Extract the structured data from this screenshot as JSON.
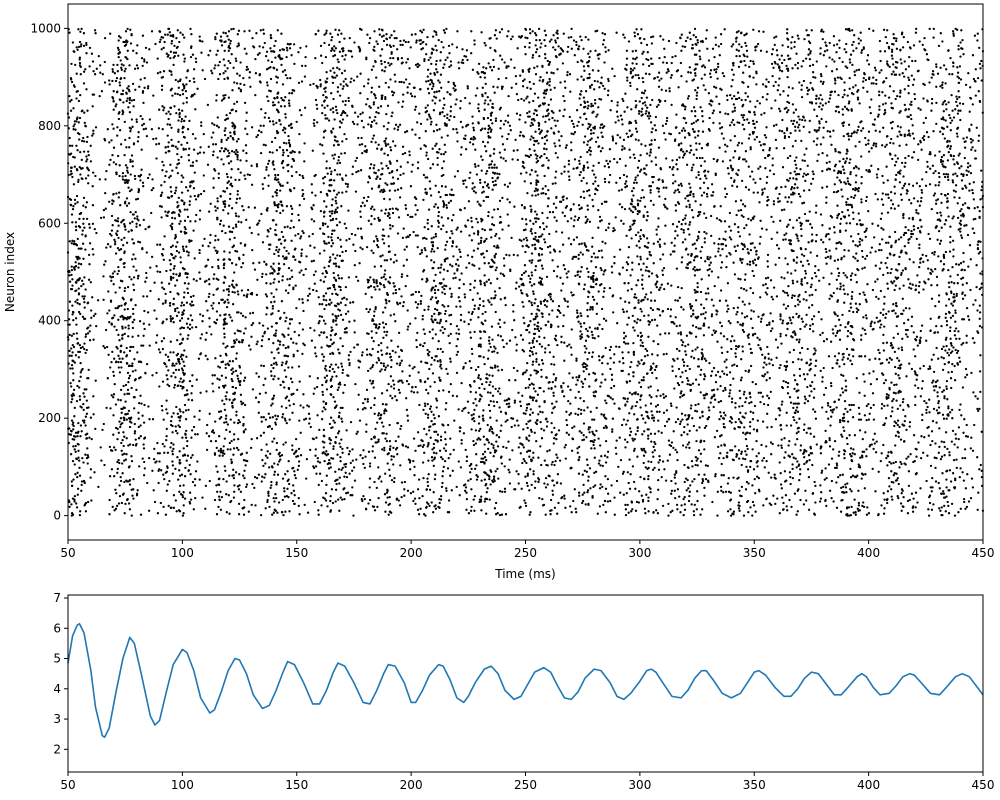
{
  "chart_data": [
    {
      "type": "scatter",
      "description_kind": "spike raster",
      "xlabel": "Time (ms)",
      "ylabel": "Neuron index",
      "xlim": [
        50,
        450
      ],
      "ylim": [
        -50,
        1050
      ],
      "xticks": [
        50,
        100,
        150,
        200,
        250,
        300,
        350,
        400,
        450
      ],
      "yticks": [
        0,
        200,
        400,
        600,
        800,
        1000
      ],
      "neuron_count": 1000,
      "marker_color": "#000000",
      "oscillation_period_ms": 22.5,
      "first_peak_ms": 53,
      "grid": false
    },
    {
      "type": "line",
      "xlabel": "",
      "ylabel": "",
      "xlim": [
        50,
        450
      ],
      "ylim": [
        1.25,
        7.1
      ],
      "xticks": [
        50,
        100,
        150,
        200,
        250,
        300,
        350,
        400,
        450
      ],
      "yticks": [
        2,
        3,
        4,
        5,
        6,
        7
      ],
      "color": "#1f77b4",
      "grid": false,
      "series": [
        {
          "x": [
            50,
            52,
            54,
            55,
            57,
            60,
            62,
            65,
            66,
            68,
            71,
            74,
            77,
            79,
            82,
            86,
            88,
            90,
            93,
            96,
            100,
            102,
            105,
            108,
            112,
            114,
            117,
            120,
            123,
            125,
            128,
            131,
            135,
            138,
            141,
            144,
            146,
            149,
            153,
            157,
            160,
            163,
            166,
            168,
            171,
            175,
            179,
            182,
            185,
            188,
            190,
            193,
            197,
            200,
            202,
            205,
            208,
            212,
            214,
            217,
            220,
            223,
            225,
            228,
            232,
            235,
            238,
            241,
            245,
            248,
            251,
            254,
            258,
            261,
            264,
            267,
            270,
            273,
            276,
            280,
            283,
            287,
            290,
            293,
            296,
            300,
            303,
            305,
            307,
            310,
            314,
            318,
            321,
            324,
            327,
            329,
            332,
            336,
            340,
            344,
            347,
            350,
            352,
            355,
            359,
            363,
            366,
            369,
            372,
            375,
            378,
            382,
            385,
            388,
            391,
            395,
            397,
            399,
            402,
            405,
            409,
            412,
            415,
            418,
            420,
            423,
            427,
            431,
            434,
            438,
            441,
            444,
            447,
            450
          ],
          "y": [
            4.85,
            5.75,
            6.1,
            6.15,
            5.85,
            4.6,
            3.4,
            2.45,
            2.4,
            2.7,
            3.9,
            5.0,
            5.7,
            5.5,
            4.5,
            3.1,
            2.8,
            2.95,
            3.9,
            4.8,
            5.3,
            5.2,
            4.6,
            3.7,
            3.2,
            3.3,
            3.9,
            4.6,
            5.0,
            4.95,
            4.5,
            3.8,
            3.35,
            3.45,
            3.95,
            4.55,
            4.9,
            4.8,
            4.2,
            3.5,
            3.5,
            3.95,
            4.55,
            4.85,
            4.75,
            4.2,
            3.55,
            3.5,
            3.95,
            4.5,
            4.8,
            4.75,
            4.2,
            3.55,
            3.55,
            3.95,
            4.45,
            4.8,
            4.75,
            4.3,
            3.7,
            3.55,
            3.75,
            4.2,
            4.65,
            4.75,
            4.5,
            3.95,
            3.65,
            3.75,
            4.15,
            4.55,
            4.7,
            4.55,
            4.1,
            3.7,
            3.65,
            3.9,
            4.35,
            4.65,
            4.6,
            4.2,
            3.75,
            3.65,
            3.85,
            4.25,
            4.6,
            4.65,
            4.55,
            4.2,
            3.75,
            3.7,
            3.95,
            4.35,
            4.6,
            4.6,
            4.3,
            3.85,
            3.7,
            3.85,
            4.2,
            4.55,
            4.6,
            4.45,
            4.05,
            3.75,
            3.75,
            4.0,
            4.35,
            4.55,
            4.5,
            4.1,
            3.8,
            3.8,
            4.05,
            4.4,
            4.5,
            4.4,
            4.05,
            3.8,
            3.85,
            4.1,
            4.4,
            4.5,
            4.45,
            4.2,
            3.85,
            3.8,
            4.05,
            4.4,
            4.5,
            4.4,
            4.1,
            3.8
          ]
        }
      ]
    }
  ]
}
